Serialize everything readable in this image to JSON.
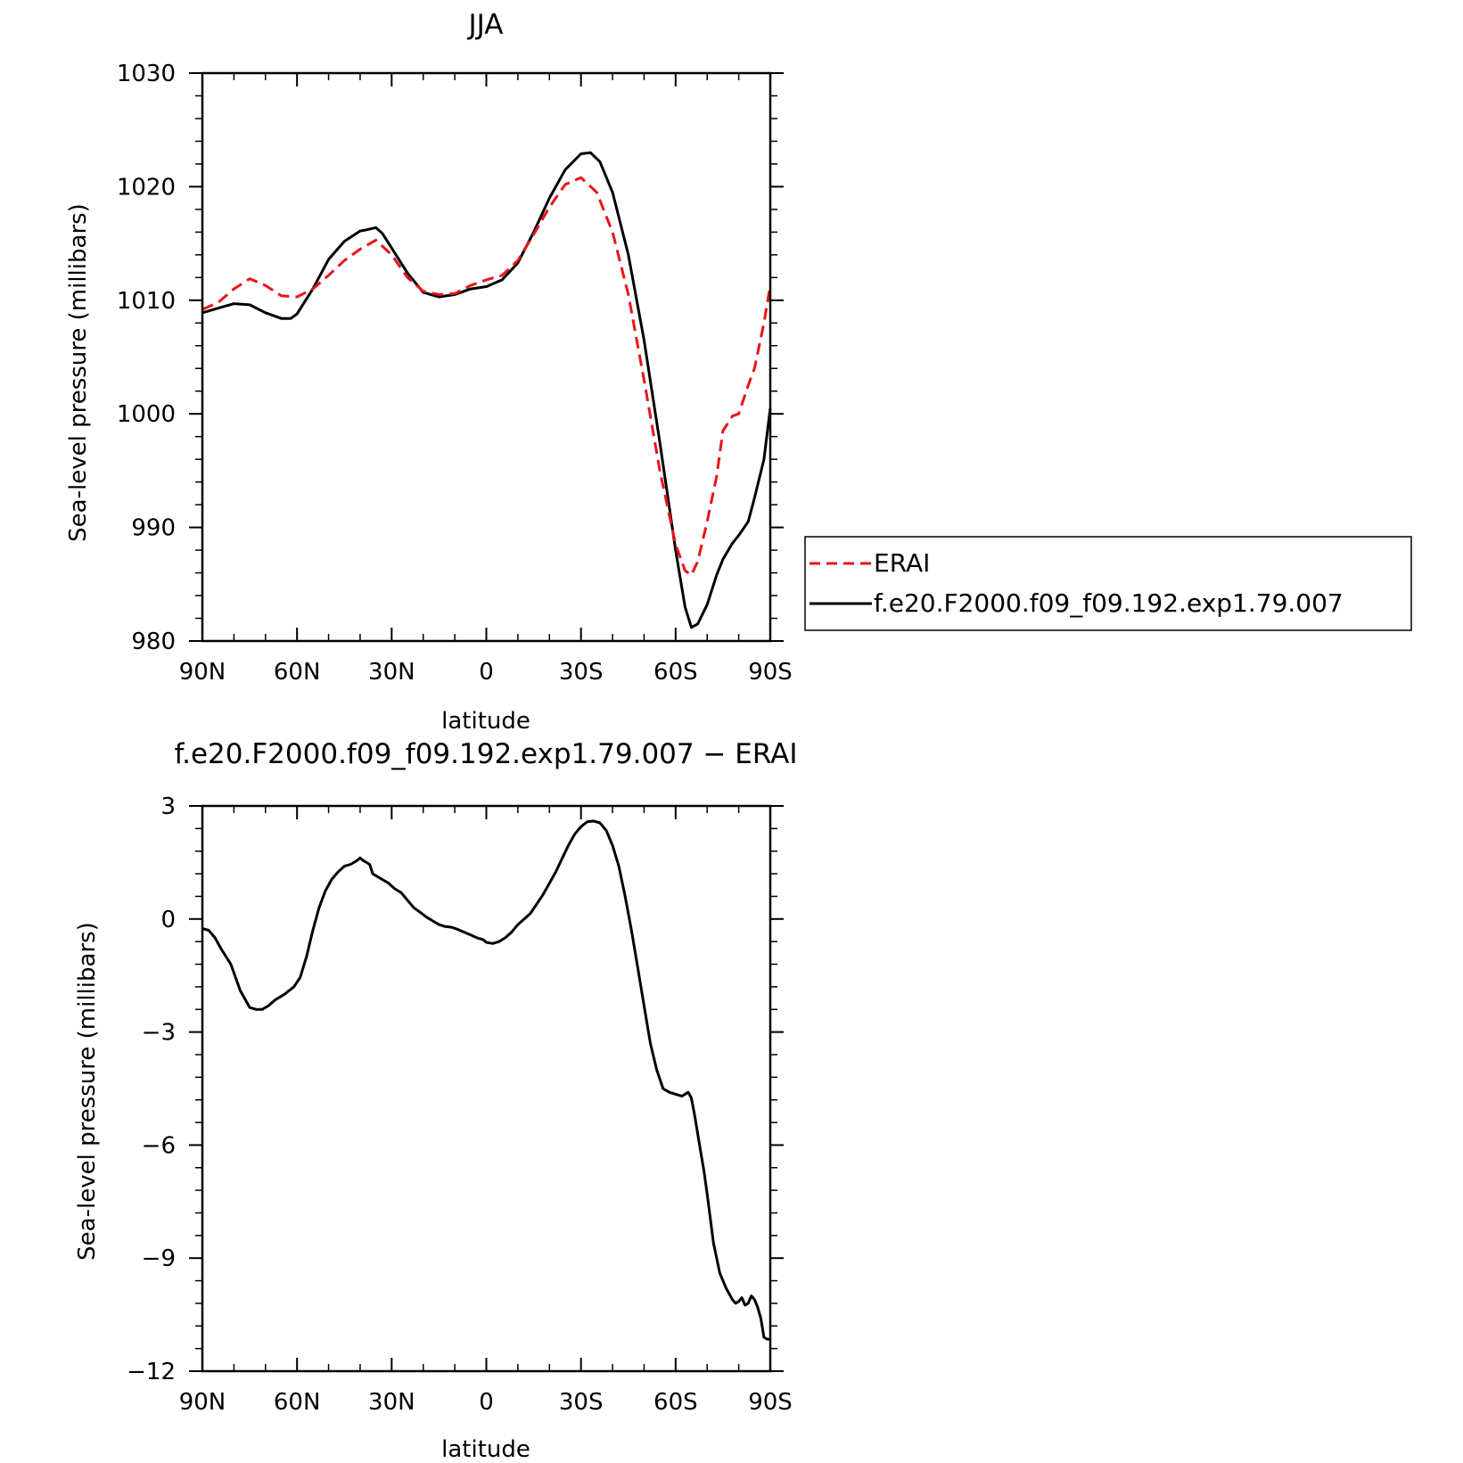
{
  "chart_data": [
    {
      "type": "line",
      "title": "JJA",
      "xlabel": "latitude",
      "ylabel": "Sea-level pressure (millibars)",
      "xlim": [
        90,
        -90
      ],
      "ylim": [
        980,
        1030
      ],
      "x_ticks": [
        {
          "value": 90,
          "label": "90N"
        },
        {
          "value": 60,
          "label": "60N"
        },
        {
          "value": 30,
          "label": "30N"
        },
        {
          "value": 0,
          "label": "0"
        },
        {
          "value": -30,
          "label": "30S"
        },
        {
          "value": -60,
          "label": "60S"
        },
        {
          "value": -90,
          "label": "90S"
        }
      ],
      "y_ticks": [
        {
          "value": 1030,
          "label": "1030"
        },
        {
          "value": 1020,
          "label": "1020"
        },
        {
          "value": 1010,
          "label": "1010"
        },
        {
          "value": 1000,
          "label": "1000"
        },
        {
          "value": 990,
          "label": "990"
        },
        {
          "value": 980,
          "label": "980"
        }
      ],
      "legend_position": "right",
      "series": [
        {
          "name": "ERAI",
          "color": "#e8141a",
          "dash": "dashed",
          "x": [
            90,
            85,
            80,
            75,
            70,
            65,
            60,
            55,
            50,
            45,
            40,
            35,
            30,
            25,
            20,
            15,
            10,
            5,
            0,
            -5,
            -10,
            -15,
            -20,
            -25,
            -30,
            -35,
            -40,
            -45,
            -50,
            -55,
            -60,
            -63,
            -65,
            -67,
            -70,
            -73,
            -75,
            -78,
            -80,
            -83,
            -85,
            -88,
            -90
          ],
          "y": [
            1009.2,
            1009.8,
            1011.0,
            1011.9,
            1011.3,
            1010.4,
            1010.3,
            1011.0,
            1012.2,
            1013.5,
            1014.5,
            1015.3,
            1014.0,
            1012.0,
            1010.8,
            1010.5,
            1010.6,
            1011.3,
            1011.8,
            1012.2,
            1013.5,
            1015.8,
            1018.2,
            1020.2,
            1020.8,
            1019.5,
            1016.0,
            1010.5,
            1003.0,
            995.0,
            988.5,
            986.2,
            985.8,
            987.0,
            990.5,
            994.5,
            998.5,
            999.8,
            1000.0,
            1002.5,
            1004.0,
            1008.0,
            1011.3
          ]
        },
        {
          "name": "f.e20.F2000.f09_f09.192.exp1.79.007",
          "color": "#000000",
          "dash": "solid",
          "x": [
            90,
            85,
            80,
            75,
            70,
            65,
            62,
            60,
            55,
            50,
            45,
            40,
            38,
            35,
            33,
            30,
            25,
            20,
            15,
            10,
            5,
            0,
            -5,
            -10,
            -15,
            -20,
            -25,
            -30,
            -33,
            -36,
            -40,
            -45,
            -50,
            -55,
            -60,
            -63,
            -65,
            -67,
            -70,
            -73,
            -75,
            -78,
            -80,
            -83,
            -85,
            -88,
            -90
          ],
          "y": [
            1008.9,
            1009.3,
            1009.7,
            1009.6,
            1008.9,
            1008.4,
            1008.4,
            1008.8,
            1011.0,
            1013.6,
            1015.2,
            1016.1,
            1016.2,
            1016.4,
            1015.9,
            1014.6,
            1012.4,
            1010.7,
            1010.3,
            1010.5,
            1011.0,
            1011.2,
            1011.8,
            1013.3,
            1016.0,
            1019.0,
            1021.5,
            1022.9,
            1023.0,
            1022.2,
            1019.5,
            1014.0,
            1006.5,
            997.5,
            988.0,
            983.0,
            981.2,
            981.5,
            983.2,
            985.8,
            987.2,
            988.6,
            989.3,
            990.5,
            992.6,
            996.0,
            1000.5
          ]
        }
      ]
    },
    {
      "type": "line",
      "title": "f.e20.F2000.f09_f09.192.exp1.79.007 − ERAI",
      "xlabel": "latitude",
      "ylabel": "Sea-level pressure (millibars)",
      "xlim": [
        90,
        -90
      ],
      "ylim": [
        -12,
        3
      ],
      "x_ticks": [
        {
          "value": 90,
          "label": "90N"
        },
        {
          "value": 60,
          "label": "60N"
        },
        {
          "value": 30,
          "label": "30N"
        },
        {
          "value": 0,
          "label": "0"
        },
        {
          "value": -30,
          "label": "30S"
        },
        {
          "value": -60,
          "label": "60S"
        },
        {
          "value": -90,
          "label": "90S"
        }
      ],
      "y_ticks": [
        {
          "value": 3,
          "label": "3"
        },
        {
          "value": 0,
          "label": "0"
        },
        {
          "value": -3,
          "label": "−3"
        },
        {
          "value": -6,
          "label": "−6"
        },
        {
          "value": -9,
          "label": "−9"
        },
        {
          "value": -12,
          "label": "−12"
        }
      ],
      "series": [
        {
          "color": "#000000",
          "dash": "solid",
          "x": [
            90,
            88,
            86,
            84,
            81,
            78,
            75,
            73,
            71,
            69,
            67,
            64,
            61,
            59,
            57,
            55,
            53,
            51,
            49,
            47,
            45,
            43,
            41,
            40,
            39,
            38,
            37,
            36,
            35,
            33,
            31,
            29,
            27,
            25,
            23,
            21,
            19,
            17,
            15,
            13,
            11,
            9,
            7,
            5,
            3,
            1,
            0,
            -2,
            -4,
            -6,
            -8,
            -10,
            -12,
            -14,
            -16,
            -18,
            -20,
            -22,
            -24,
            -26,
            -28,
            -30,
            -32,
            -34,
            -36,
            -37,
            -38,
            -40,
            -42,
            -44,
            -46,
            -48,
            -50,
            -52,
            -54,
            -56,
            -58,
            -60,
            -62,
            -63,
            -64,
            -65,
            -66,
            -67,
            -68,
            -69,
            -70,
            -72,
            -74,
            -76,
            -78,
            -79,
            -80,
            -81,
            -82,
            -83,
            -84,
            -85,
            -86,
            -87,
            -88,
            -89,
            -90
          ],
          "y": [
            -0.25,
            -0.3,
            -0.5,
            -0.8,
            -1.2,
            -1.9,
            -2.35,
            -2.4,
            -2.4,
            -2.3,
            -2.15,
            -2.0,
            -1.8,
            -1.55,
            -1.0,
            -0.3,
            0.3,
            0.75,
            1.05,
            1.25,
            1.4,
            1.45,
            1.55,
            1.62,
            1.55,
            1.5,
            1.45,
            1.2,
            1.15,
            1.05,
            0.95,
            0.8,
            0.7,
            0.5,
            0.3,
            0.18,
            0.05,
            -0.05,
            -0.15,
            -0.2,
            -0.22,
            -0.28,
            -0.35,
            -0.42,
            -0.5,
            -0.55,
            -0.62,
            -0.65,
            -0.6,
            -0.5,
            -0.35,
            -0.15,
            0.0,
            0.15,
            0.4,
            0.65,
            0.95,
            1.25,
            1.6,
            1.95,
            2.25,
            2.45,
            2.58,
            2.6,
            2.55,
            2.45,
            2.35,
            1.95,
            1.4,
            0.6,
            -0.3,
            -1.3,
            -2.3,
            -3.3,
            -4.0,
            -4.5,
            -4.6,
            -4.65,
            -4.7,
            -4.65,
            -4.6,
            -4.75,
            -5.2,
            -5.7,
            -6.2,
            -6.7,
            -7.3,
            -8.6,
            -9.4,
            -9.8,
            -10.1,
            -10.2,
            -10.15,
            -10.05,
            -10.25,
            -10.2,
            -10.0,
            -10.1,
            -10.3,
            -10.6,
            -11.1,
            -11.15,
            -11.15
          ]
        }
      ]
    }
  ],
  "legend": {
    "items": [
      {
        "label": "ERAI",
        "color": "#e8141a",
        "dash": "dashed"
      },
      {
        "label": "f.e20.F2000.f09_f09.192.exp1.79.007",
        "color": "#000000",
        "dash": "solid"
      }
    ]
  }
}
